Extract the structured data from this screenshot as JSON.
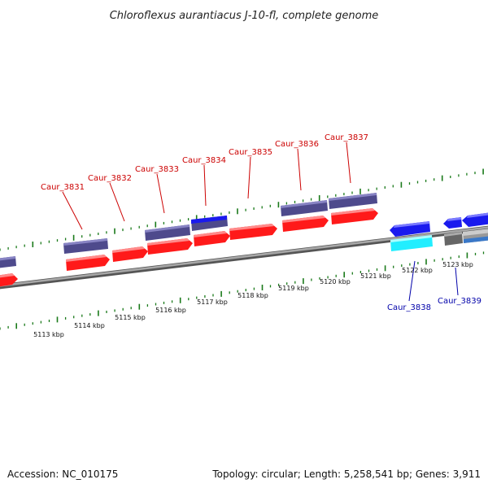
{
  "title": "Chloroflexus aurantiacus J-10-fl, complete genome",
  "footer": {
    "accession": "Accession: NC_010175",
    "summary": "Topology: circular; Length: 5,258,541 bp; Genes: 3,911"
  },
  "colors": {
    "forward_label": "#cc0000",
    "reverse_label": "#0000aa",
    "cds": "#ff1a1a",
    "gene_slate": "#4e4a8c",
    "gene_blue": "#1a1aee",
    "gene_cyan": "#22eeff",
    "gene_gray": "#777777",
    "tick": "#1a7a1a",
    "backbone": "#888888"
  },
  "kbp_labels": [
    "5113 kbp",
    "5114 kbp",
    "5115 kbp",
    "5116 kbp",
    "5117 kbp",
    "5118 kbp",
    "5119 kbp",
    "5120 kbp",
    "5121 kbp",
    "5122 kbp",
    "5123 kbp"
  ],
  "forward_genes": [
    "Caur_3831",
    "Caur_3832",
    "Caur_3833",
    "Caur_3834",
    "Caur_3835",
    "Caur_3836",
    "Caur_3837"
  ],
  "reverse_genes": [
    "Caur_3838",
    "Caur_3839"
  ]
}
